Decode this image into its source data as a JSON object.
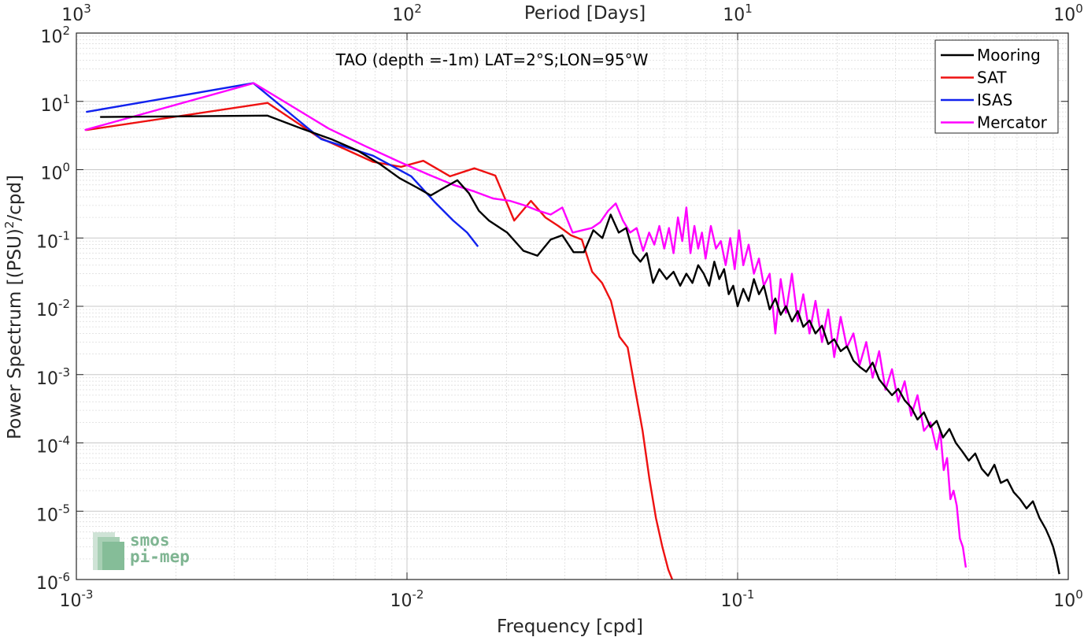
{
  "chart_data": {
    "type": "line",
    "title": "TAO (depth =-1m) LAT=2°S;LON=95°W",
    "xlabel": "Frequency [cpd]",
    "ylabel": "Power Spectrum [(PSU)²/cpd]",
    "ylabel_parts": {
      "pre": "Power Spectrum [(PSU)",
      "sup": "2",
      "post": "/cpd]"
    },
    "x2label": "Period [Days]",
    "xscale": "log",
    "yscale": "log",
    "xlim": [
      0.001,
      1
    ],
    "ylim": [
      1e-06,
      100
    ],
    "grid": true,
    "legend_position": "top-right",
    "x_ticks": [
      {
        "value": 0.001,
        "base": "10",
        "exp": "-3"
      },
      {
        "value": 0.01,
        "base": "10",
        "exp": "-2"
      },
      {
        "value": 0.1,
        "base": "10",
        "exp": "-1"
      },
      {
        "value": 1,
        "base": "10",
        "exp": "0"
      }
    ],
    "y_ticks": [
      {
        "value": 1e-06,
        "base": "10",
        "exp": "-6"
      },
      {
        "value": 1e-05,
        "base": "10",
        "exp": "-5"
      },
      {
        "value": 0.0001,
        "base": "10",
        "exp": "-4"
      },
      {
        "value": 0.001,
        "base": "10",
        "exp": "-3"
      },
      {
        "value": 0.01,
        "base": "10",
        "exp": "-2"
      },
      {
        "value": 0.1,
        "base": "10",
        "exp": "-1"
      },
      {
        "value": 1,
        "base": "10",
        "exp": "0"
      },
      {
        "value": 10,
        "base": "10",
        "exp": "1"
      },
      {
        "value": 100,
        "base": "10",
        "exp": "2"
      }
    ],
    "top_ticks": [
      {
        "value": 0.001,
        "base": "10",
        "exp": "3"
      },
      {
        "value": 0.01,
        "base": "10",
        "exp": "2"
      },
      {
        "value": 0.1,
        "base": "10",
        "exp": "1"
      },
      {
        "value": 1,
        "base": "10",
        "exp": "0"
      }
    ],
    "series": [
      {
        "name": "Mooring",
        "color": "#000000",
        "x": [
          0.00118,
          0.00378,
          0.0048,
          0.0059,
          0.0071,
          0.0083,
          0.0095,
          0.0107,
          0.0118,
          0.013,
          0.0142,
          0.0154,
          0.0165,
          0.0177,
          0.0201,
          0.0225,
          0.0248,
          0.0272,
          0.0295,
          0.0319,
          0.0343,
          0.0366,
          0.039,
          0.0413,
          0.0437,
          0.046,
          0.0484,
          0.0508,
          0.0531,
          0.0555,
          0.058,
          0.061,
          0.064,
          0.067,
          0.07,
          0.073,
          0.076,
          0.079,
          0.082,
          0.085,
          0.088,
          0.091,
          0.094,
          0.097,
          0.1,
          0.104,
          0.108,
          0.112,
          0.116,
          0.12,
          0.125,
          0.13,
          0.135,
          0.14,
          0.146,
          0.152,
          0.158,
          0.165,
          0.172,
          0.18,
          0.188,
          0.196,
          0.205,
          0.214,
          0.224,
          0.234,
          0.245,
          0.256,
          0.268,
          0.28,
          0.293,
          0.306,
          0.32,
          0.335,
          0.35,
          0.366,
          0.383,
          0.4,
          0.418,
          0.437,
          0.457,
          0.478,
          0.5,
          0.523,
          0.547,
          0.572,
          0.598,
          0.625,
          0.654,
          0.684,
          0.715,
          0.748,
          0.782,
          0.818,
          0.855,
          0.88,
          0.9,
          0.92,
          0.94
        ],
        "y": [
          5.9,
          6.2,
          4.0,
          2.8,
          1.9,
          1.2,
          0.75,
          0.55,
          0.42,
          0.55,
          0.7,
          0.45,
          0.25,
          0.18,
          0.12,
          0.065,
          0.055,
          0.095,
          0.11,
          0.062,
          0.062,
          0.13,
          0.1,
          0.22,
          0.12,
          0.14,
          0.06,
          0.045,
          0.06,
          0.022,
          0.035,
          0.025,
          0.032,
          0.02,
          0.03,
          0.022,
          0.04,
          0.03,
          0.02,
          0.045,
          0.025,
          0.035,
          0.015,
          0.02,
          0.01,
          0.018,
          0.012,
          0.025,
          0.015,
          0.02,
          0.009,
          0.013,
          0.0075,
          0.01,
          0.006,
          0.0085,
          0.005,
          0.0062,
          0.004,
          0.0052,
          0.0028,
          0.0033,
          0.0022,
          0.0026,
          0.0016,
          0.0013,
          0.0011,
          0.0015,
          0.00085,
          0.00065,
          0.0005,
          0.00062,
          0.00042,
          0.00033,
          0.00022,
          0.00028,
          0.00017,
          0.00021,
          0.00012,
          0.00016,
          0.0001,
          7.5e-05,
          5.5e-05,
          7e-05,
          4.2e-05,
          3.3e-05,
          4.8e-05,
          2.6e-05,
          2.9e-05,
          1.9e-05,
          1.5e-05,
          1.1e-05,
          1.4e-05,
          8e-06,
          5.5e-06,
          4e-06,
          3e-06,
          2e-06,
          1.2e-06
        ]
      },
      {
        "name": "SAT",
        "color": "#ee1111",
        "x": [
          0.00107,
          0.00379,
          0.0054,
          0.0079,
          0.0096,
          0.0112,
          0.0135,
          0.016,
          0.0185,
          0.0211,
          0.0237,
          0.0262,
          0.0287,
          0.0313,
          0.0338,
          0.0363,
          0.0389,
          0.0414,
          0.0439,
          0.0465,
          0.049,
          0.0516,
          0.0541,
          0.0566,
          0.0592,
          0.0617,
          0.064
        ],
        "y": [
          3.8,
          9.5,
          3.0,
          1.3,
          1.1,
          1.35,
          0.8,
          1.05,
          0.82,
          0.18,
          0.35,
          0.2,
          0.15,
          0.11,
          0.095,
          0.032,
          0.022,
          0.012,
          0.0036,
          0.0025,
          0.0006,
          0.00015,
          3e-05,
          8e-06,
          3e-06,
          1.4e-06,
          9e-07
        ]
      },
      {
        "name": "ISAS",
        "color": "#1122ee",
        "x": [
          0.00107,
          0.00343,
          0.0055,
          0.0079,
          0.0103,
          0.0121,
          0.0138,
          0.0152,
          0.0164
        ],
        "y": [
          7.0,
          18.5,
          2.8,
          1.6,
          0.8,
          0.34,
          0.18,
          0.12,
          0.075
        ]
      },
      {
        "name": "Mercator",
        "color": "#ff00ff",
        "x": [
          0.00106,
          0.00344,
          0.0058,
          0.0075,
          0.0095,
          0.0116,
          0.0138,
          0.016,
          0.0182,
          0.0205,
          0.0227,
          0.025,
          0.0272,
          0.0295,
          0.0317,
          0.0339,
          0.0362,
          0.0384,
          0.0406,
          0.0428,
          0.045,
          0.0473,
          0.0495,
          0.0518,
          0.054,
          0.056,
          0.058,
          0.06,
          0.062,
          0.064,
          0.066,
          0.068,
          0.07,
          0.072,
          0.074,
          0.076,
          0.078,
          0.08,
          0.083,
          0.086,
          0.089,
          0.092,
          0.095,
          0.098,
          0.101,
          0.104,
          0.108,
          0.112,
          0.116,
          0.12,
          0.125,
          0.13,
          0.135,
          0.14,
          0.146,
          0.152,
          0.158,
          0.165,
          0.172,
          0.18,
          0.188,
          0.196,
          0.205,
          0.214,
          0.224,
          0.234,
          0.245,
          0.256,
          0.268,
          0.28,
          0.293,
          0.306,
          0.32,
          0.335,
          0.35,
          0.366,
          0.383,
          0.4,
          0.41,
          0.42,
          0.43,
          0.44,
          0.45,
          0.46,
          0.47,
          0.48,
          0.49
        ],
        "y": [
          3.8,
          18.5,
          4.0,
          2.2,
          1.3,
          0.85,
          0.6,
          0.48,
          0.38,
          0.35,
          0.3,
          0.25,
          0.22,
          0.28,
          0.12,
          0.13,
          0.14,
          0.17,
          0.25,
          0.32,
          0.18,
          0.12,
          0.14,
          0.065,
          0.12,
          0.08,
          0.15,
          0.07,
          0.14,
          0.06,
          0.2,
          0.09,
          0.28,
          0.06,
          0.15,
          0.07,
          0.12,
          0.05,
          0.15,
          0.07,
          0.09,
          0.04,
          0.1,
          0.035,
          0.13,
          0.04,
          0.08,
          0.03,
          0.05,
          0.02,
          0.03,
          0.004,
          0.025,
          0.008,
          0.03,
          0.006,
          0.015,
          0.004,
          0.012,
          0.003,
          0.009,
          0.0018,
          0.007,
          0.0025,
          0.004,
          0.0014,
          0.003,
          0.0009,
          0.0022,
          0.0006,
          0.0012,
          0.0004,
          0.0008,
          0.00025,
          0.0005,
          0.00015,
          0.0002,
          8e-05,
          0.00015,
          4e-05,
          6e-05,
          1.5e-05,
          2e-05,
          1.2e-05,
          4e-06,
          3e-06,
          1.5e-06
        ]
      }
    ]
  },
  "logo": {
    "line1": "smos",
    "line2": "pi-mep"
  }
}
